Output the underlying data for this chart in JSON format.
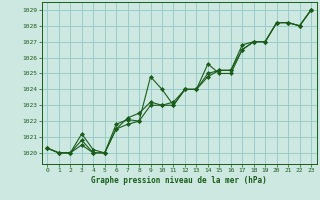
{
  "xlabel": "Graphe pression niveau de la mer (hPa)",
  "bg_color": "#cce8e0",
  "grid_color": "#99cccc",
  "line_color": "#1a5c1a",
  "marker_color": "#1a5c1a",
  "xlim": [
    -0.5,
    23.5
  ],
  "ylim": [
    1019.3,
    1029.5
  ],
  "yticks": [
    1020,
    1021,
    1022,
    1023,
    1024,
    1025,
    1026,
    1027,
    1028,
    1029
  ],
  "xticks": [
    0,
    1,
    2,
    3,
    4,
    5,
    6,
    7,
    8,
    9,
    10,
    11,
    12,
    13,
    14,
    15,
    16,
    17,
    18,
    19,
    20,
    21,
    22,
    23
  ],
  "series": [
    [
      1020.3,
      1020.0,
      1020.0,
      1020.5,
      1020.0,
      1020.0,
      1021.8,
      1022.1,
      1022.0,
      1024.8,
      1024.0,
      1023.0,
      1024.0,
      1024.0,
      1025.6,
      1025.0,
      1025.0,
      1026.5,
      1027.0,
      1027.0,
      1028.2,
      1028.2,
      1028.0,
      1029.0
    ],
    [
      1020.3,
      1020.0,
      1020.0,
      1021.2,
      1020.2,
      1020.0,
      1021.5,
      1022.2,
      1022.5,
      1023.2,
      1023.0,
      1023.2,
      1024.0,
      1024.0,
      1024.8,
      1025.2,
      1025.2,
      1026.8,
      1027.0,
      1027.0,
      1028.2,
      1028.2,
      1028.0,
      1029.0
    ],
    [
      1020.3,
      1020.0,
      1020.0,
      1020.8,
      1020.0,
      1020.0,
      1021.5,
      1021.8,
      1022.0,
      1023.0,
      1023.0,
      1023.0,
      1024.0,
      1024.0,
      1025.0,
      1025.2,
      1025.2,
      1026.5,
      1027.0,
      1027.0,
      1028.2,
      1028.2,
      1028.0,
      1029.0
    ]
  ]
}
